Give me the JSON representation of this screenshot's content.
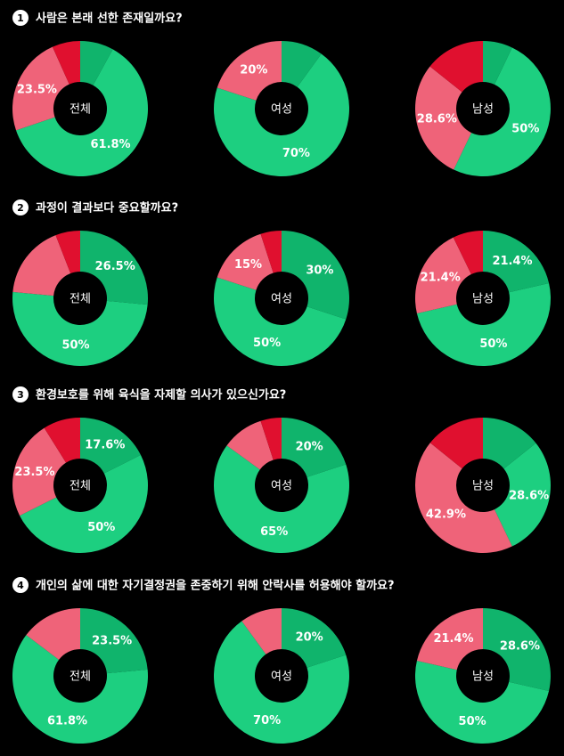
{
  "chart_data": [
    {
      "type": "donut",
      "number": 1,
      "title": "사람은 본래 선한 존재일까요?",
      "colors": [
        "#10b46c",
        "#1dcf80",
        "#ef6379",
        "#e0102f"
      ],
      "groups": [
        {
          "name": "전체",
          "values": [
            8,
            61.8,
            23.5,
            6.7
          ],
          "value_labels": [
            null,
            "61.8%",
            "23.5%",
            null
          ]
        },
        {
          "name": "여성",
          "values": [
            10,
            70,
            20
          ],
          "value_labels": [
            null,
            "70%",
            "20%"
          ]
        },
        {
          "name": "남성",
          "values": [
            7.1,
            50,
            28.6,
            14.3
          ],
          "value_labels": [
            null,
            "50%",
            "28.6%",
            null
          ]
        }
      ]
    },
    {
      "type": "donut",
      "number": 2,
      "title": "과정이 결과보다 중요할까요?",
      "colors": [
        "#10b46c",
        "#1dcf80",
        "#ef6379",
        "#e0102f"
      ],
      "groups": [
        {
          "name": "전체",
          "values": [
            26.5,
            50,
            17.6,
            5.9
          ],
          "value_labels": [
            "26.5%",
            "50%",
            null,
            null
          ]
        },
        {
          "name": "여성",
          "values": [
            30,
            50,
            15,
            5
          ],
          "value_labels": [
            "30%",
            "50%",
            "15%",
            null
          ]
        },
        {
          "name": "남성",
          "values": [
            21.4,
            50,
            21.4,
            7.2
          ],
          "value_labels": [
            "21.4%",
            "50%",
            "21.4%",
            null
          ]
        }
      ]
    },
    {
      "type": "donut",
      "number": 3,
      "title": "환경보호를 위해 육식을 자제할 의사가 있으신가요?",
      "colors": [
        "#10b46c",
        "#1dcf80",
        "#ef6379",
        "#e0102f"
      ],
      "groups": [
        {
          "name": "전체",
          "values": [
            17.6,
            50,
            23.5,
            8.9
          ],
          "value_labels": [
            "17.6%",
            "50%",
            "23.5%",
            null
          ]
        },
        {
          "name": "여성",
          "values": [
            20,
            65,
            10,
            5
          ],
          "value_labels": [
            "20%",
            "65%",
            null,
            null
          ]
        },
        {
          "name": "남성",
          "values": [
            14.3,
            28.6,
            42.9,
            14.2
          ],
          "value_labels": [
            null,
            "28.6%",
            "42.9%",
            null
          ]
        }
      ]
    },
    {
      "type": "donut",
      "number": 4,
      "title": "개인의 삶에 대한 자기결정권을 존중하기 위해 안락사를 허용해야 할까요?",
      "colors": [
        "#10b46c",
        "#1dcf80",
        "#ef6379",
        "#e0102f"
      ],
      "groups": [
        {
          "name": "전체",
          "values": [
            23.5,
            61.8,
            14.7
          ],
          "value_labels": [
            "23.5%",
            "61.8%",
            null
          ]
        },
        {
          "name": "여성",
          "values": [
            20,
            70,
            10
          ],
          "value_labels": [
            "20%",
            "70%",
            null
          ]
        },
        {
          "name": "남성",
          "values": [
            28.6,
            50,
            21.4
          ],
          "value_labels": [
            "28.6%",
            "50%",
            "21.4%"
          ]
        }
      ]
    }
  ]
}
